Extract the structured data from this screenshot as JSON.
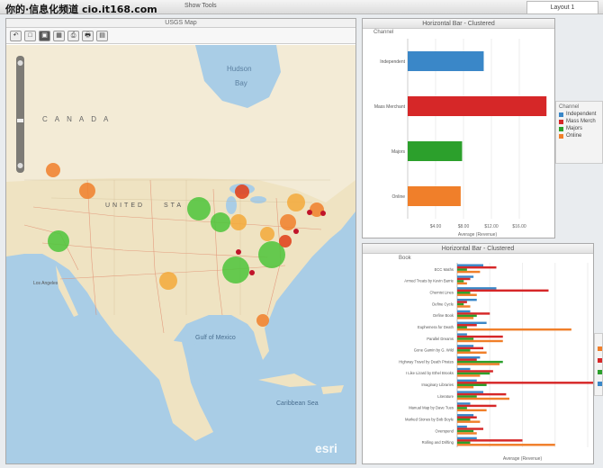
{
  "watermark": "你的·信息化频道 cio.it168.com",
  "menu": [
    "Show Tools"
  ],
  "layout_tab": "Layout 1",
  "map": {
    "title": "USGS Map",
    "tools": [
      "↶",
      "□",
      "▣",
      "▦",
      "⎙",
      "🖶",
      "▤"
    ],
    "labels": {
      "hudson": "Hudson",
      "bay": "Bay",
      "canada": "CANADA",
      "united": "UNITED",
      "sta": "STA",
      "gulf": "Gulf of Mexico",
      "caribbean": "Caribbean Sea",
      "esri": "esri",
      "la": "Los Angeles"
    }
  },
  "top_chart": {
    "title": "Horizontal Bar - Clustered",
    "header": "Channel",
    "xlabel": "Average (Revenue)",
    "legend_title": "Channel",
    "legend": [
      {
        "name": "Independent",
        "color": "#3a87c8"
      },
      {
        "name": "Mass Merch",
        "color": "#d62728"
      },
      {
        "name": "Majors",
        "color": "#2ca02c"
      },
      {
        "name": "Online",
        "color": "#f07f2a"
      }
    ]
  },
  "bottom_chart": {
    "title": "Horizontal Bar - Clustered",
    "header": "Book",
    "xlabel": "Average (Revenue)"
  },
  "chart_data": [
    {
      "type": "bar",
      "orientation": "horizontal",
      "title": "Horizontal Bar - Clustered",
      "categories": [
        "Independent",
        "Mass Merchant",
        "Majors",
        "Online"
      ],
      "values": [
        10.9,
        19.9,
        7.8,
        7.6
      ],
      "colors": [
        "#3a87c8",
        "#d62728",
        "#2ca02c",
        "#f07f2a"
      ],
      "xticks": [
        "$4.00",
        "$8.00",
        "$12.00",
        "$16.00"
      ],
      "xlim": [
        0,
        20
      ],
      "xlabel": "Average (Revenue)"
    },
    {
      "type": "bar",
      "orientation": "horizontal",
      "title": "Horizontal Bar - Clustered",
      "categories": [
        "ECC Maths",
        "Armed Treats by Kevin Barrie",
        "Chemist Lines",
        "Define Cycle",
        "Define Book",
        "Euphemera for Death",
        "Parallel Dreams",
        "Gone Gamin by G. Wild",
        "Highway Travel by Death Pirates",
        "I Like Lizard by Ethel Brooks",
        "Imaginary Libraries",
        "Literature",
        "Manual Map by Dave Tues",
        "Marked Stones by Bob Boyle",
        "Overspend",
        "Rolling and Drifting"
      ],
      "series": [
        {
          "name": "Independent",
          "color": "#3a87c8",
          "values": [
            8,
            5,
            12,
            6,
            4,
            9,
            3,
            5,
            7,
            4,
            6,
            8,
            4,
            5,
            3,
            6
          ]
        },
        {
          "name": "Mass Merch",
          "color": "#d62728",
          "values": [
            12,
            4,
            28,
            3,
            10,
            6,
            14,
            8,
            6,
            11,
            42,
            15,
            12,
            6,
            8,
            20
          ]
        },
        {
          "name": "Majors",
          "color": "#2ca02c",
          "values": [
            3,
            2,
            4,
            2,
            6,
            3,
            5,
            4,
            14,
            10,
            9,
            6,
            3,
            4,
            5,
            4
          ]
        },
        {
          "name": "Online",
          "color": "#f07f2a",
          "values": [
            7,
            3,
            6,
            4,
            5,
            35,
            14,
            9,
            13,
            7,
            5,
            16,
            9,
            7,
            6,
            30
          ]
        }
      ],
      "xlim": [
        0,
        40
      ],
      "xlabel": "Average (Revenue)"
    }
  ]
}
